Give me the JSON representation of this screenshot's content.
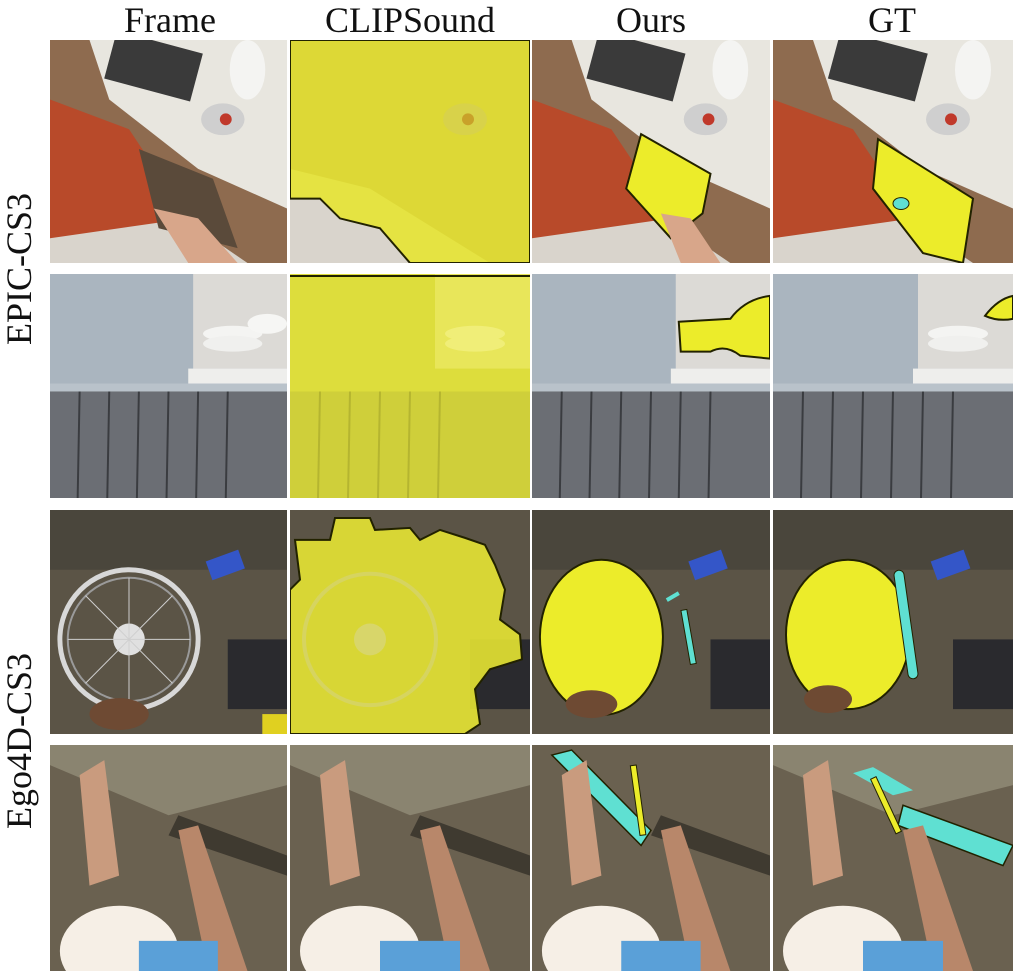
{
  "figure": {
    "columns": [
      {
        "label": "Frame"
      },
      {
        "label": "CLIPSound"
      },
      {
        "label": "Ours"
      },
      {
        "label": "GT"
      }
    ],
    "row_groups": [
      {
        "label": "EPIC-CS3"
      },
      {
        "label": "Ego4D-CS3"
      }
    ]
  },
  "colors": {
    "mask_yellow": "#ecec2a",
    "mask_cyan": "#5fe0d2",
    "outline": "#222200"
  },
  "panels": [
    {
      "scene": "kitchen-drawer",
      "method": "Frame"
    },
    {
      "scene": "kitchen-drawer",
      "method": "CLIPSound"
    },
    {
      "scene": "kitchen-drawer",
      "method": "Ours"
    },
    {
      "scene": "kitchen-drawer",
      "method": "GT"
    },
    {
      "scene": "kitchen-plates",
      "method": "Frame"
    },
    {
      "scene": "kitchen-plates",
      "method": "CLIPSound"
    },
    {
      "scene": "kitchen-plates",
      "method": "Ours"
    },
    {
      "scene": "kitchen-plates",
      "method": "GT"
    },
    {
      "scene": "bicycle-wheel",
      "method": "Frame"
    },
    {
      "scene": "bicycle-wheel",
      "method": "CLIPSound"
    },
    {
      "scene": "bicycle-wheel",
      "method": "Ours"
    },
    {
      "scene": "bicycle-wheel",
      "method": "GT"
    },
    {
      "scene": "outdoor-hands",
      "method": "Frame"
    },
    {
      "scene": "outdoor-hands",
      "method": "CLIPSound"
    },
    {
      "scene": "outdoor-hands",
      "method": "Ours"
    },
    {
      "scene": "outdoor-hands",
      "method": "GT"
    }
  ]
}
